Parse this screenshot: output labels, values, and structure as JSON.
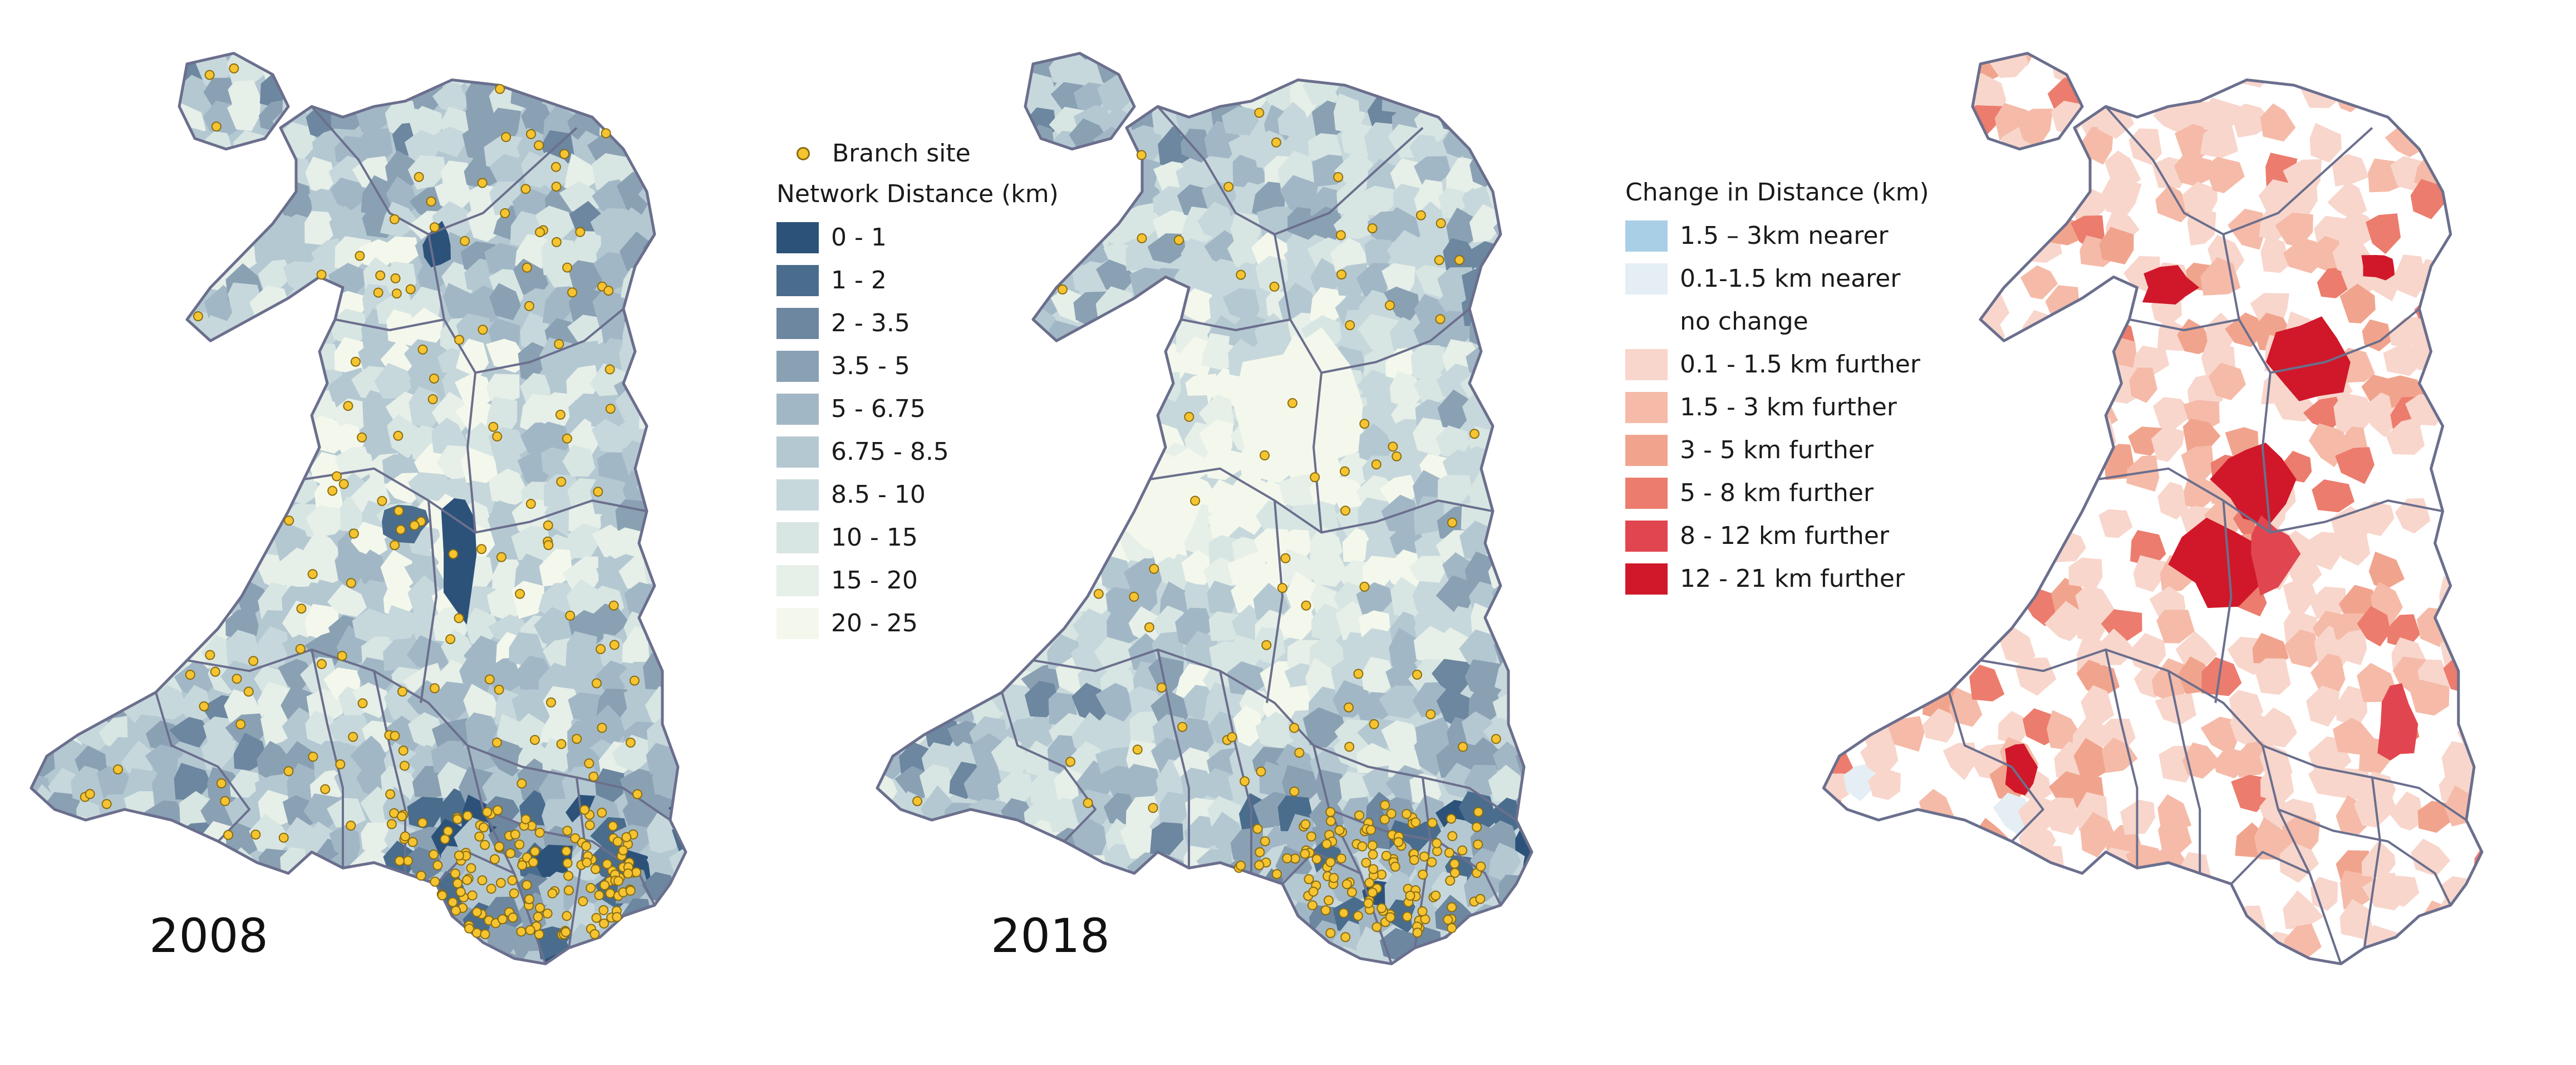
{
  "panels": [
    {
      "id": "p2008",
      "year_label": "2008"
    },
    {
      "id": "p2018",
      "year_label": "2018"
    },
    {
      "id": "pchange",
      "year_label": ""
    }
  ],
  "distance_legend": {
    "branch_label": "Branch site",
    "title": "Network Distance (km)",
    "classes": [
      {
        "label": "0 - 1",
        "color": "#2c527a"
      },
      {
        "label": "1 - 2",
        "color": "#4a6d8d"
      },
      {
        "label": "2 - 3.5",
        "color": "#6c879f"
      },
      {
        "label": "3.5 - 5",
        "color": "#8aa1b4"
      },
      {
        "label": "5 - 6.75",
        "color": "#a2b7c6"
      },
      {
        "label": "6.75 - 8.5",
        "color": "#b4c8d2"
      },
      {
        "label": "8.5 - 10",
        "color": "#c7d8dc"
      },
      {
        "label": "10 - 15",
        "color": "#d8e6e3"
      },
      {
        "label": "15 - 20",
        "color": "#e6efe8"
      },
      {
        "label": "20 - 25",
        "color": "#f4f8ec"
      }
    ]
  },
  "change_legend": {
    "title": "Change in Distance (km)",
    "classes": [
      {
        "label": "1.5 – 3km nearer",
        "color": "#a9cfe6"
      },
      {
        "label": "0.1-1.5 km nearer",
        "color": "#e4eef4"
      },
      {
        "label": "no change",
        "color": "#ffffff"
      },
      {
        "label": "0.1 - 1.5 km further",
        "color": "#f8d6cc"
      },
      {
        "label": "1.5 - 3 km further",
        "color": "#f5bba8"
      },
      {
        "label": "3 - 5 km further",
        "color": "#f1a48d"
      },
      {
        "label": "5 - 8 km further",
        "color": "#ec7c6d"
      },
      {
        "label": "8 - 12 km further",
        "color": "#e14650"
      },
      {
        "label": "12 - 21 km further",
        "color": "#d0182a"
      }
    ]
  },
  "colors": {
    "boundary": "#6b6f8d",
    "branch_fill": "#f6c430",
    "branch_stroke": "#8a6d10"
  }
}
